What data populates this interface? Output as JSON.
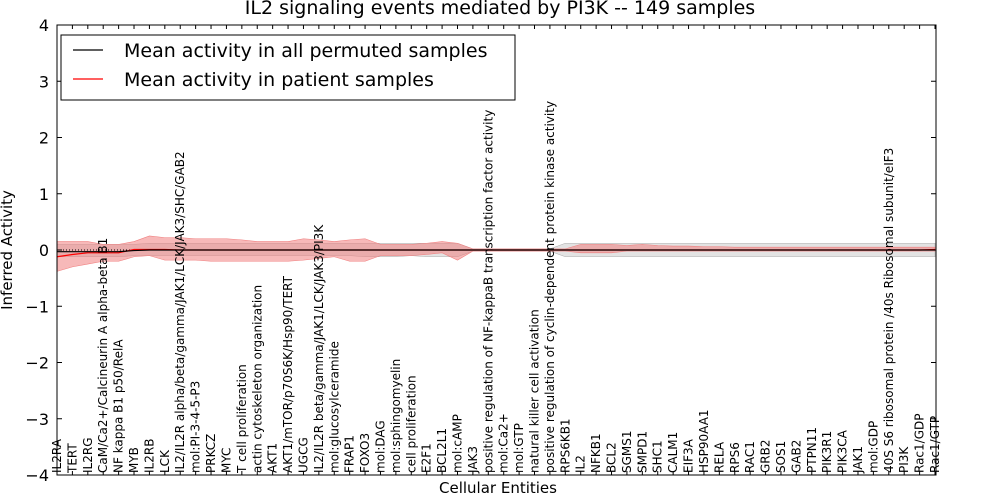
{
  "chart_data": {
    "type": "line",
    "title": "IL2 signaling events mediated by PI3K -- 149 samples",
    "xlabel": "Cellular Entities",
    "ylabel": "Inferred Activity",
    "ylim": [
      -4,
      4
    ],
    "yticks": [
      "4",
      "3",
      "2",
      "1",
      "0",
      "−1",
      "−2",
      "−3",
      "−4"
    ],
    "grid": false,
    "legend_position": "top-left",
    "categories": [
      "IL2RA",
      "TERT",
      "IL2RG",
      "CaM/Ca2+/Calcineurin A alpha-beta B1",
      "NF kappa B1 p50/RelA",
      "MYB",
      "IL2RB",
      "LCK",
      "IL2/IL2R alpha/beta/gamma/JAK1/LCK/JAK3/SHC/GAB2",
      "mol:PI-3-4-5-P3",
      "PRKCZ",
      "MYC",
      "T cell proliferation",
      "actin cytoskeleton organization",
      "AKT1",
      "AKT1/mTOR/p70S6K/Hsp90/TERT",
      "UGCG",
      "IL2/IL2R beta/gamma/JAK1/LCK/JAK3/PI3K",
      "mol:glucosylceramide",
      "FRAP1",
      "FOXO3",
      "mol:DAG",
      "mol:sphingomyelin",
      "cell proliferation",
      "E2F1",
      "BCL2L1",
      "mol:cAMP",
      "JAK3",
      "positive regulation of NF-kappaB transcription factor activity",
      "mol:Ca2+",
      "mol:GTP",
      "natural killer cell activation",
      "positive regulation of cyclin-dependent protein kinase activity",
      "RPS6KB1",
      "IL2",
      "NFKB1",
      "BCL2",
      "SGMS1",
      "SMPD1",
      "SHC1",
      "CALM1",
      "EIF3A",
      "HSP90AA1",
      "RELA",
      "RPS6",
      "RAC1",
      "GRB2",
      "SOS1",
      "GAB2",
      "PTPN11",
      "PIK3R1",
      "PIK3CA",
      "JAK1",
      "mol:GDP",
      "40S S6 ribosomal protein /40s Ribosomal subunit/eIF3",
      "PI3K",
      "Rac1/GDP",
      "Rac1/GTP"
    ],
    "series": [
      {
        "name": "Mean activity in all permuted samples",
        "color": "#000000",
        "values": [
          -0.03,
          -0.03,
          -0.03,
          -0.03,
          -0.03,
          -0.01,
          0.0,
          0.0,
          0.0,
          0.0,
          0.0,
          0.0,
          0.0,
          0.0,
          0.0,
          0.0,
          0.0,
          0.0,
          0.0,
          0.0,
          0.0,
          0.0,
          0.0,
          0.0,
          0.0,
          0.0,
          0.0,
          0.0,
          0.0,
          0.0,
          0.0,
          0.0,
          0.0,
          0.0,
          0.0,
          0.0,
          0.0,
          0.0,
          0.0,
          0.0,
          0.0,
          0.0,
          0.0,
          0.0,
          0.0,
          0.0,
          0.0,
          0.0,
          0.0,
          0.0,
          0.0,
          0.0,
          0.0,
          0.0,
          0.0,
          0.0,
          0.0,
          0.0
        ],
        "band_low": [
          -0.12,
          -0.12,
          -0.12,
          -0.12,
          -0.12,
          -0.1,
          -0.1,
          -0.1,
          -0.1,
          -0.1,
          -0.1,
          -0.1,
          -0.1,
          -0.1,
          -0.1,
          -0.1,
          -0.1,
          -0.1,
          -0.1,
          -0.1,
          -0.12,
          -0.12,
          -0.12,
          -0.1,
          -0.12,
          -0.12,
          -0.12,
          -0.02,
          -0.02,
          -0.02,
          -0.02,
          -0.02,
          -0.02,
          -0.12,
          -0.12,
          -0.12,
          -0.12,
          -0.12,
          -0.12,
          -0.12,
          -0.12,
          -0.12,
          -0.12,
          -0.12,
          -0.12,
          -0.12,
          -0.12,
          -0.12,
          -0.12,
          -0.12,
          -0.12,
          -0.12,
          -0.12,
          -0.12,
          -0.12,
          -0.12,
          -0.12,
          -0.12
        ],
        "band_high": [
          0.1,
          0.1,
          0.1,
          0.1,
          0.1,
          0.1,
          0.12,
          0.12,
          0.12,
          0.12,
          0.12,
          0.12,
          0.12,
          0.12,
          0.12,
          0.12,
          0.12,
          0.12,
          0.12,
          0.12,
          0.12,
          0.12,
          0.12,
          0.12,
          0.12,
          0.12,
          0.12,
          0.02,
          0.02,
          0.02,
          0.02,
          0.02,
          0.02,
          0.12,
          0.12,
          0.12,
          0.12,
          0.12,
          0.12,
          0.12,
          0.12,
          0.12,
          0.12,
          0.12,
          0.12,
          0.12,
          0.12,
          0.12,
          0.12,
          0.12,
          0.12,
          0.12,
          0.12,
          0.12,
          0.12,
          0.12,
          0.12,
          0.12
        ]
      },
      {
        "name": "Mean activity in patient samples",
        "color": "#ff0000",
        "values": [
          -0.12,
          -0.08,
          -0.05,
          -0.05,
          -0.05,
          0.01,
          0.01,
          0.01,
          0.0,
          0.0,
          0.0,
          0.0,
          0.0,
          0.0,
          0.0,
          0.0,
          0.0,
          0.0,
          0.0,
          0.0,
          0.0,
          0.0,
          0.0,
          0.0,
          0.0,
          0.0,
          0.0,
          0.0,
          0.0,
          0.0,
          0.0,
          0.0,
          0.0,
          0.0,
          0.0,
          0.0,
          0.0,
          0.0,
          0.0,
          0.0,
          0.0,
          0.0,
          0.0,
          0.0,
          0.0,
          0.0,
          0.0,
          0.0,
          0.0,
          0.0,
          0.0,
          0.0,
          0.0,
          0.0,
          0.0,
          0.0,
          0.0,
          0.01
        ],
        "band_low": [
          -0.38,
          -0.3,
          -0.25,
          -0.2,
          -0.2,
          -0.12,
          -0.1,
          -0.18,
          -0.18,
          -0.18,
          -0.2,
          -0.2,
          -0.2,
          -0.2,
          -0.2,
          -0.2,
          -0.18,
          -0.15,
          -0.12,
          -0.2,
          -0.2,
          -0.1,
          -0.1,
          -0.1,
          -0.08,
          -0.05,
          -0.18,
          -0.02,
          -0.02,
          -0.02,
          -0.02,
          -0.02,
          -0.02,
          -0.02,
          -0.05,
          -0.05,
          -0.05,
          -0.02,
          -0.02,
          -0.02,
          -0.02,
          -0.02,
          -0.02,
          -0.02,
          -0.02,
          -0.02,
          -0.02,
          -0.02,
          -0.02,
          -0.02,
          -0.02,
          -0.02,
          -0.02,
          -0.02,
          -0.02,
          -0.02,
          -0.02,
          -0.02
        ],
        "band_high": [
          0.15,
          0.15,
          0.15,
          0.1,
          0.1,
          0.15,
          0.25,
          0.22,
          0.22,
          0.2,
          0.2,
          0.2,
          0.18,
          0.15,
          0.15,
          0.15,
          0.2,
          0.18,
          0.15,
          0.18,
          0.2,
          0.1,
          0.1,
          0.1,
          0.12,
          0.15,
          0.12,
          0.02,
          0.02,
          0.02,
          0.02,
          0.02,
          0.02,
          0.02,
          0.1,
          0.1,
          0.1,
          0.08,
          0.1,
          0.08,
          0.07,
          0.07,
          0.06,
          0.06,
          0.05,
          0.05,
          0.05,
          0.05,
          0.05,
          0.05,
          0.05,
          0.05,
          0.05,
          0.05,
          0.05,
          0.05,
          0.05,
          0.05
        ]
      }
    ]
  }
}
